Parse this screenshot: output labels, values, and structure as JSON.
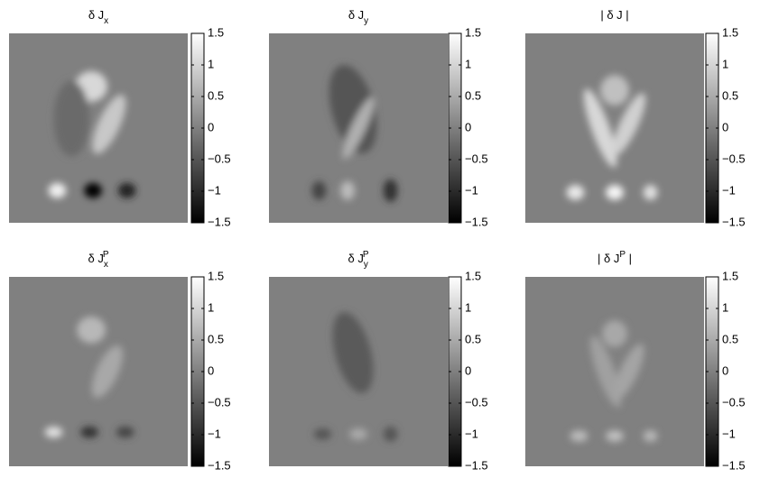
{
  "chart_data": [
    {
      "type": "image",
      "title": [
        {
          "text": "δ J"
        },
        {
          "text": "x",
          "sub": true
        }
      ],
      "colormap": "gray",
      "clim": [
        -1.5,
        1.5
      ],
      "cticks": [
        {
          "value": -1.5,
          "label": "−1.5"
        },
        {
          "value": -1,
          "label": "−1"
        },
        {
          "value": -0.5,
          "label": "−0.5"
        },
        0,
        0.5,
        1,
        1.5
      ]
    },
    {
      "type": "image",
      "title": [
        {
          "text": "δ J"
        },
        {
          "text": "y",
          "sub": true
        }
      ],
      "colormap": "gray",
      "clim": [
        -1.5,
        1.5
      ],
      "cticks": [
        {
          "value": -1.5,
          "label": "−1.5"
        },
        {
          "value": -1,
          "label": "−1"
        },
        {
          "value": -0.5,
          "label": "−0.5"
        },
        0,
        0.5,
        1,
        1.5
      ]
    },
    {
      "type": "image",
      "title": [
        {
          "text": "| δ J |"
        }
      ],
      "colormap": "gray",
      "clim": [
        -1.5,
        1.5
      ],
      "cticks": [
        {
          "value": -1.5,
          "label": "−1.5"
        },
        {
          "value": -1,
          "label": "−1"
        },
        {
          "value": -0.5,
          "label": "−0.5"
        },
        0,
        0.5,
        1,
        1.5
      ]
    },
    {
      "type": "image",
      "title": [
        {
          "text": "δ J"
        },
        {
          "text": "x",
          "sub": true
        },
        {
          "text": "P",
          "sup": true
        }
      ],
      "colormap": "gray",
      "clim": [
        -1.5,
        1.5
      ],
      "cticks": [
        {
          "value": -1.5,
          "label": "−1.5"
        },
        {
          "value": -1,
          "label": "−1"
        },
        {
          "value": -0.5,
          "label": "−0.5"
        },
        0,
        0.5,
        1,
        1.5
      ]
    },
    {
      "type": "image",
      "title": [
        {
          "text": "δ J"
        },
        {
          "text": "y",
          "sub": true
        },
        {
          "text": "P",
          "sup": true
        }
      ],
      "colormap": "gray",
      "clim": [
        -1.5,
        1.5
      ],
      "cticks": [
        {
          "value": -1.5,
          "label": "−1.5"
        },
        {
          "value": -1,
          "label": "−1"
        },
        {
          "value": -0.5,
          "label": "−0.5"
        },
        0,
        0.5,
        1,
        1.5
      ]
    },
    {
      "type": "image",
      "title": [
        {
          "text": "| δ J"
        },
        {
          "text": "P",
          "sup": true
        },
        {
          "text": " |"
        }
      ],
      "colormap": "gray",
      "clim": [
        -1.5,
        1.5
      ],
      "cticks": [
        {
          "value": -1.5,
          "label": "−1.5"
        },
        {
          "value": -1,
          "label": "−1"
        },
        {
          "value": -0.5,
          "label": "−0.5"
        },
        0,
        0.5,
        1,
        1.5
      ]
    }
  ]
}
